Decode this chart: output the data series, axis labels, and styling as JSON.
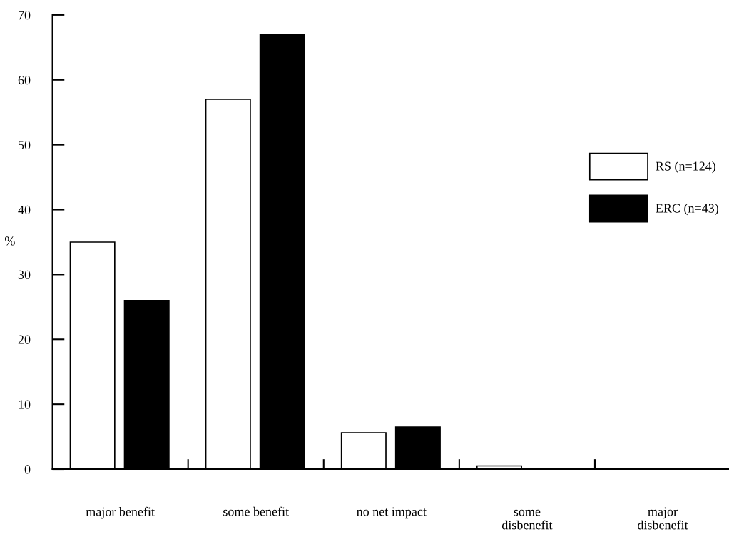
{
  "chart_data": {
    "type": "bar",
    "ylabel": "%",
    "categories": [
      "major benefit",
      "some benefit",
      "no net impact",
      "some\ndisbenefit",
      "major\ndisbenefit"
    ],
    "series": [
      {
        "name": "RS (n=124)",
        "color": "#ffffff",
        "values": [
          35,
          57,
          5.6,
          0.5,
          0
        ]
      },
      {
        "name": "ERC (n=43)",
        "color": "#000000",
        "values": [
          26,
          67,
          6.5,
          0,
          0
        ]
      }
    ],
    "ylim": [
      0,
      70
    ],
    "yticks": [
      0,
      10,
      20,
      30,
      40,
      50,
      60,
      70
    ],
    "grid": false,
    "legend": "right"
  }
}
